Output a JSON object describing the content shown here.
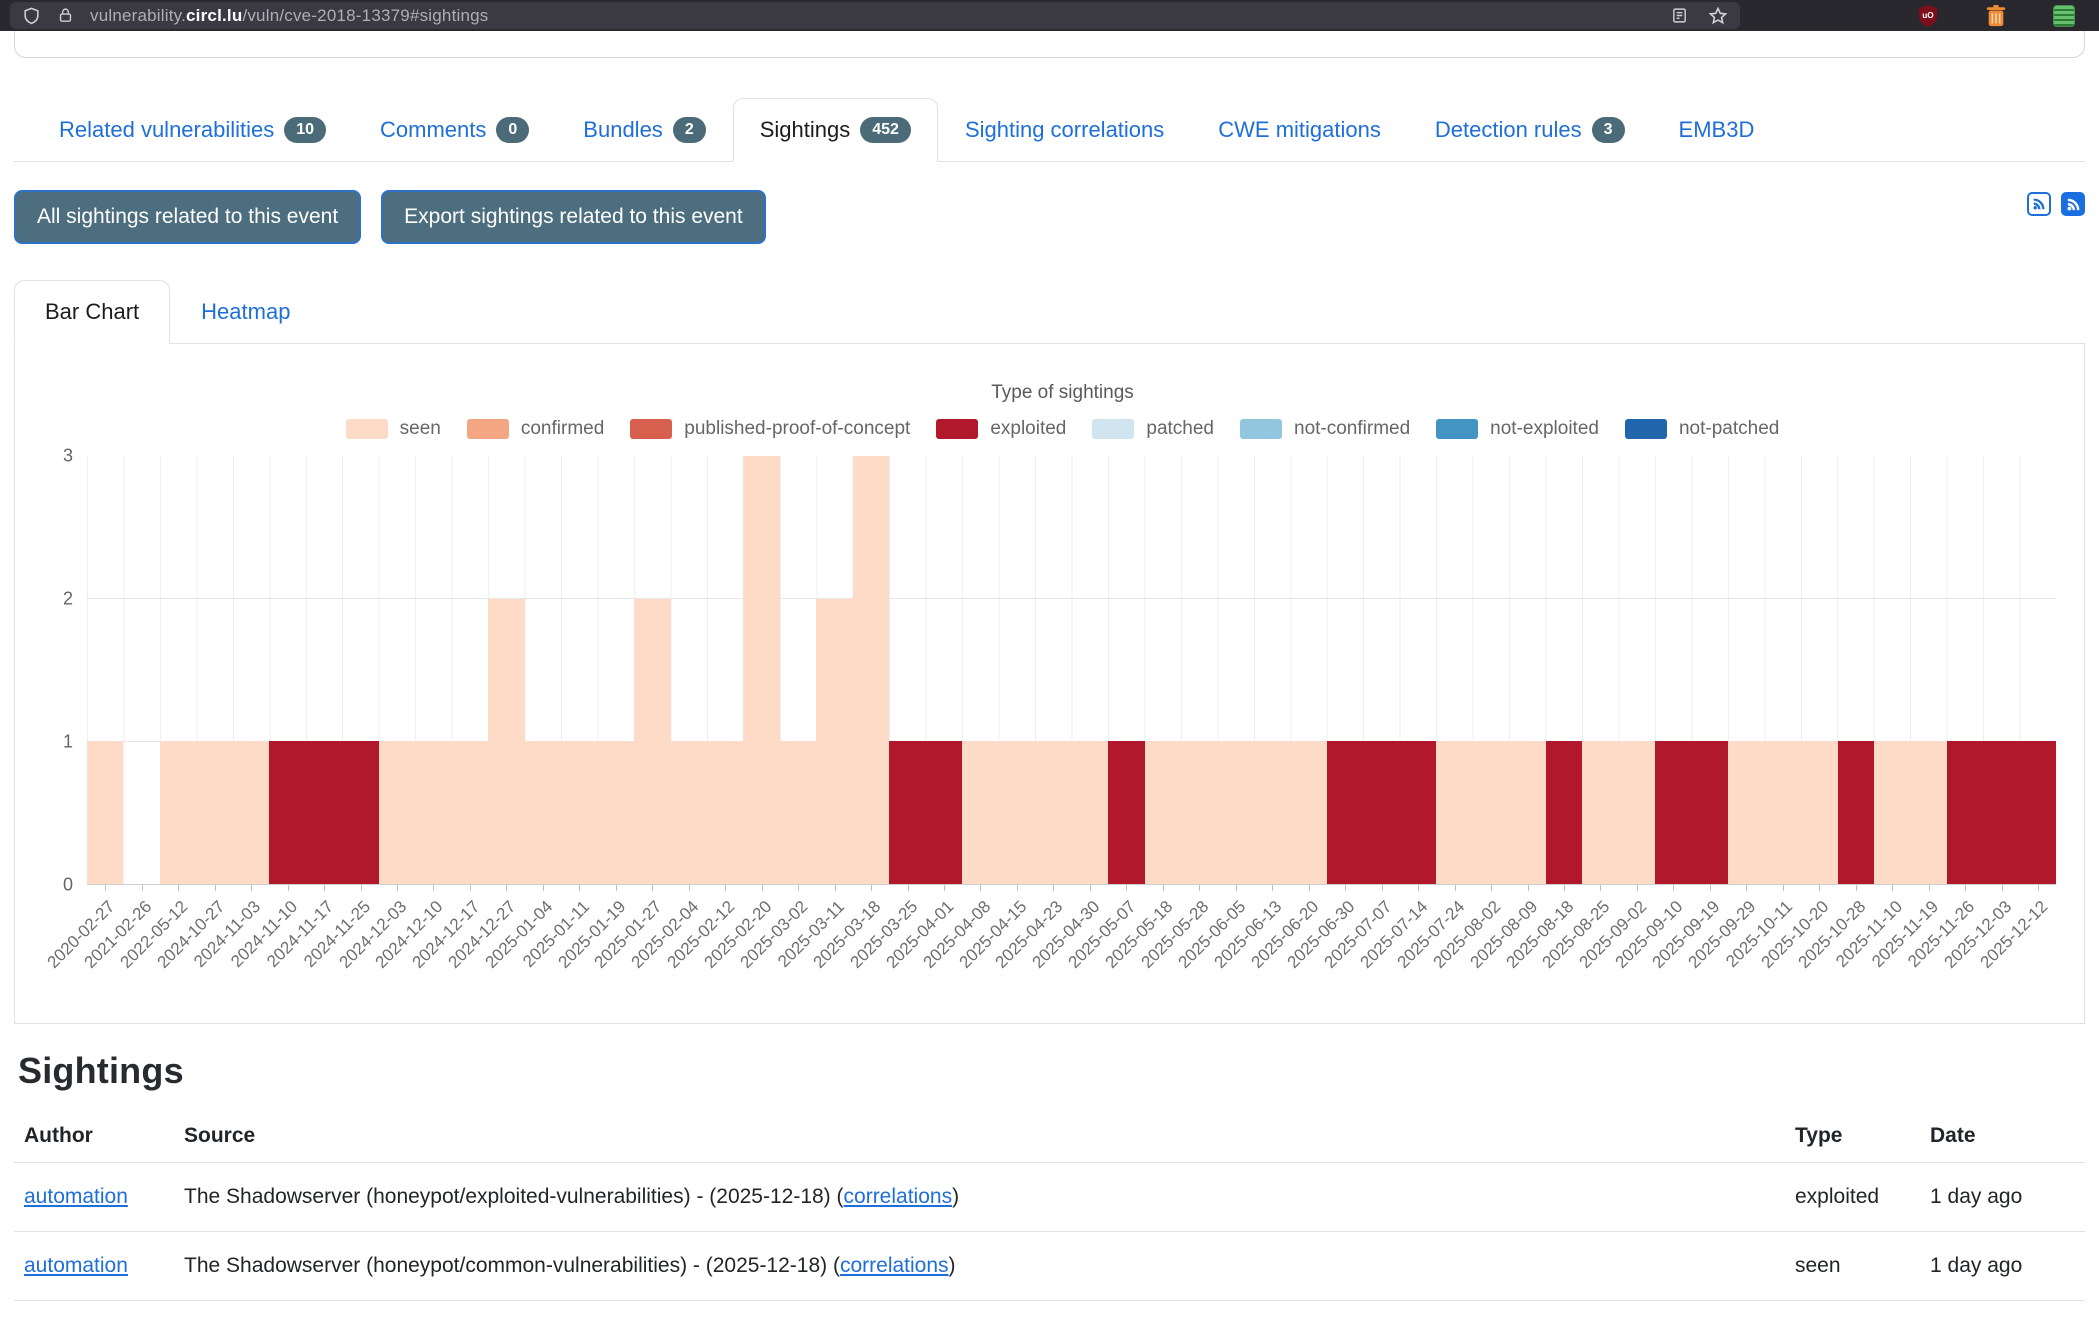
{
  "browser": {
    "url_prefix": "vulnerability.",
    "url_domain": "circl.lu",
    "url_path": "/vuln/cve-2018-13379#sightings",
    "icons": [
      "shield-permissions-icon",
      "lock-icon",
      "reader-view-icon",
      "bookmark-star-icon",
      "ublock-origin-icon",
      "trash-extension-icon",
      "green-extension-icon"
    ]
  },
  "nav": {
    "tabs": [
      {
        "label": "Related vulnerabilities",
        "badge": "10",
        "active": false
      },
      {
        "label": "Comments",
        "badge": "0",
        "active": false
      },
      {
        "label": "Bundles",
        "badge": "2",
        "active": false
      },
      {
        "label": "Sightings",
        "badge": "452",
        "active": true
      },
      {
        "label": "Sighting correlations",
        "badge": null,
        "active": false
      },
      {
        "label": "CWE mitigations",
        "badge": null,
        "active": false
      },
      {
        "label": "Detection rules",
        "badge": "3",
        "active": false
      },
      {
        "label": "EMB3D",
        "badge": null,
        "active": false
      }
    ]
  },
  "actions": {
    "all_sightings_label": "All sightings related to this event",
    "export_sightings_label": "Export sightings related to this event",
    "rss_icons": [
      "rss-outline-icon",
      "rss-solid-icon"
    ]
  },
  "chart_tabs": {
    "bar_chart_label": "Bar Chart",
    "heatmap_label": "Heatmap"
  },
  "chart_data": {
    "type": "bar",
    "title": "Type of sightings",
    "stacked": true,
    "grid": true,
    "legend_position": "top",
    "ylim": [
      0,
      3
    ],
    "y_ticks": [
      0,
      1,
      2,
      3
    ],
    "legend": [
      {
        "name": "seen",
        "color": "#fddbc7"
      },
      {
        "name": "confirmed",
        "color": "#f4a582"
      },
      {
        "name": "published-proof-of-concept",
        "color": "#d6604d"
      },
      {
        "name": "exploited",
        "color": "#b2182b"
      },
      {
        "name": "patched",
        "color": "#d1e5f0"
      },
      {
        "name": "not-confirmed",
        "color": "#92c5de"
      },
      {
        "name": "not-exploited",
        "color": "#4393c3"
      },
      {
        "name": "not-patched",
        "color": "#2166ac"
      }
    ],
    "categories": [
      "2020-02-27",
      "2021-02-26",
      "2022-05-12",
      "2024-10-27",
      "2024-11-03",
      "2024-11-10",
      "2024-11-17",
      "2024-11-25",
      "2024-12-03",
      "2024-12-10",
      "2024-12-17",
      "2024-12-27",
      "2025-01-04",
      "2025-01-11",
      "2025-01-19",
      "2025-01-27",
      "2025-02-04",
      "2025-02-12",
      "2025-02-20",
      "2025-03-02",
      "2025-03-11",
      "2025-03-18",
      "2025-03-25",
      "2025-04-01",
      "2025-04-08",
      "2025-04-15",
      "2025-04-23",
      "2025-04-30",
      "2025-05-07",
      "2025-05-18",
      "2025-05-28",
      "2025-06-05",
      "2025-06-13",
      "2025-06-20",
      "2025-06-30",
      "2025-07-07",
      "2025-07-14",
      "2025-07-24",
      "2025-08-02",
      "2025-08-09",
      "2025-08-18",
      "2025-08-25",
      "2025-09-02",
      "2025-09-10",
      "2025-09-19",
      "2025-09-29",
      "2025-10-11",
      "2025-10-20",
      "2025-10-28",
      "2025-11-10",
      "2025-11-19",
      "2025-11-26",
      "2025-12-03",
      "2025-12-12"
    ],
    "series": [
      {
        "name": "seen",
        "values": [
          1,
          0,
          1,
          1,
          1,
          0,
          0,
          0,
          1,
          1,
          1,
          2,
          1,
          1,
          1,
          2,
          1,
          1,
          3,
          1,
          2,
          3,
          0,
          0,
          1,
          1,
          1,
          1,
          0,
          1,
          1,
          1,
          1,
          1,
          0,
          0,
          0,
          1,
          1,
          1,
          0,
          1,
          1,
          0,
          0,
          1,
          1,
          1,
          0,
          1,
          1,
          0,
          0,
          0
        ]
      },
      {
        "name": "exploited",
        "values": [
          0,
          0,
          0,
          0,
          0,
          1,
          1,
          1,
          0,
          0,
          0,
          0,
          0,
          0,
          0,
          0,
          0,
          0,
          0,
          0,
          0,
          0,
          1,
          1,
          0,
          0,
          0,
          0,
          1,
          0,
          0,
          0,
          0,
          0,
          1,
          1,
          1,
          0,
          0,
          0,
          1,
          0,
          0,
          1,
          1,
          0,
          0,
          0,
          1,
          0,
          0,
          1,
          1,
          1
        ]
      }
    ]
  },
  "sightings": {
    "heading": "Sightings",
    "columns": [
      "Author",
      "Source",
      "Type",
      "Date"
    ],
    "rows": [
      {
        "author": "automation",
        "source": "The Shadowserver (honeypot/exploited-vulnerabilities) - (2025-12-18) (",
        "correlations_label": "correlations",
        "source_suffix": ")",
        "type": "exploited",
        "date": "1 day ago"
      },
      {
        "author": "automation",
        "source": "The Shadowserver (honeypot/common-vulnerabilities) - (2025-12-18) (",
        "correlations_label": "correlations",
        "source_suffix": ")",
        "type": "seen",
        "date": "1 day ago"
      }
    ]
  }
}
